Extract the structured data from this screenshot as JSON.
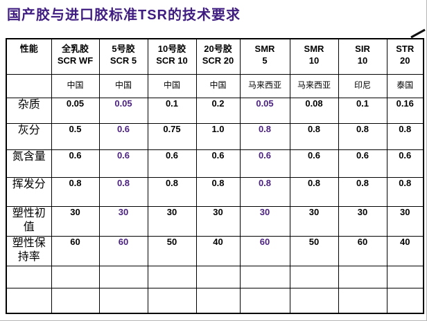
{
  "slide": {
    "title": {
      "prefix": "国产胶与进口胶标准",
      "emphasis": "TSR",
      "suffix": "的技术要求"
    }
  },
  "colors": {
    "title_text": "#3F1D80",
    "highlight_value": "#4A217F",
    "table_text": "#000000",
    "grid_line": "#000000"
  },
  "table": {
    "header": [
      {
        "line1": "性能",
        "line2": ""
      },
      {
        "line1": "全乳胶",
        "line2": "SCR WF"
      },
      {
        "line1": "5号胶",
        "line2": "SCR 5"
      },
      {
        "line1": "10号胶",
        "line2": "SCR 10"
      },
      {
        "line1": "20号胶",
        "line2": "SCR 20"
      },
      {
        "line1": "SMR",
        "line2": "5"
      },
      {
        "line1": "SMR",
        "line2": "10"
      },
      {
        "line1": "SIR",
        "line2": "10"
      },
      {
        "line1": "STR",
        "line2": "20"
      }
    ],
    "country_row": [
      "",
      "中国",
      "中国",
      "中国",
      "中国",
      "马来西亚",
      "马来西亚",
      "印尼",
      "泰国"
    ],
    "rows": [
      {
        "label": "杂质",
        "values": [
          "0.05",
          "0.05",
          "0.1",
          "0.2",
          "0.05",
          "0.08",
          "0.1",
          "0.16"
        ]
      },
      {
        "label": "灰分",
        "values": [
          "0.5",
          "0.6",
          "0.75",
          "1.0",
          "0.8",
          "0.8",
          "0.8",
          "0.8"
        ]
      },
      {
        "label": "氮含量",
        "values": [
          "0.6",
          "0.6",
          "0.6",
          "0.6",
          "0.6",
          "0.6",
          "0.6",
          "0.6"
        ]
      },
      {
        "label": "挥发分",
        "values": [
          "0.8",
          "0.8",
          "0.8",
          "0.8",
          "0.8",
          "0.8",
          "0.8",
          "0.8"
        ]
      },
      {
        "label": "塑性初值",
        "values": [
          "30",
          "30",
          "30",
          "30",
          "30",
          "30",
          "30",
          "30"
        ]
      },
      {
        "label": "塑性保持率",
        "values": [
          "60",
          "60",
          "50",
          "40",
          "60",
          "50",
          "60",
          "40"
        ]
      }
    ],
    "highlight_value_columns": [
      1,
      4
    ],
    "empty_row_count": 2
  }
}
